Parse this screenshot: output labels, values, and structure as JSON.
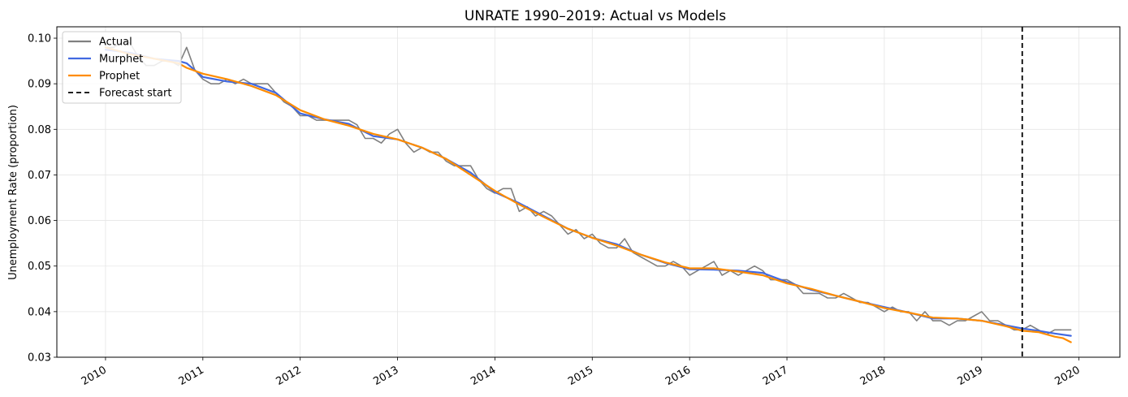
{
  "chart_data": {
    "type": "line",
    "title": "UNRATE 1990–2019: Actual vs Models",
    "xlabel": "",
    "ylabel": "Unemployment Rate (proportion)",
    "xlim": [
      2009.5,
      2020.42
    ],
    "ylim": [
      0.03,
      0.1025
    ],
    "x_ticks": [
      {
        "value": 2010,
        "label": "2010"
      },
      {
        "value": 2011,
        "label": "2011"
      },
      {
        "value": 2012,
        "label": "2012"
      },
      {
        "value": 2013,
        "label": "2013"
      },
      {
        "value": 2014,
        "label": "2014"
      },
      {
        "value": 2015,
        "label": "2015"
      },
      {
        "value": 2016,
        "label": "2016"
      },
      {
        "value": 2017,
        "label": "2017"
      },
      {
        "value": 2018,
        "label": "2018"
      },
      {
        "value": 2019,
        "label": "2019"
      },
      {
        "value": 2020,
        "label": "2020"
      }
    ],
    "y_ticks": [
      {
        "value": 0.03,
        "label": "0.03"
      },
      {
        "value": 0.04,
        "label": "0.04"
      },
      {
        "value": 0.05,
        "label": "0.05"
      },
      {
        "value": 0.06,
        "label": "0.06"
      },
      {
        "value": 0.07,
        "label": "0.07"
      },
      {
        "value": 0.08,
        "label": "0.08"
      },
      {
        "value": 0.09,
        "label": "0.09"
      },
      {
        "value": 0.1,
        "label": "0.10"
      }
    ],
    "grid": true,
    "legend_position": "top-left",
    "forecast_start": 2019.417,
    "series": [
      {
        "name": "Actual",
        "color": "#808080",
        "points": [
          [
            2010.0,
            0.098
          ],
          [
            2010.083,
            0.098
          ],
          [
            2010.167,
            0.099
          ],
          [
            2010.25,
            0.099
          ],
          [
            2010.333,
            0.096
          ],
          [
            2010.417,
            0.094
          ],
          [
            2010.5,
            0.094
          ],
          [
            2010.583,
            0.095
          ],
          [
            2010.667,
            0.095
          ],
          [
            2010.75,
            0.094
          ],
          [
            2010.833,
            0.098
          ],
          [
            2010.917,
            0.093
          ],
          [
            2011.0,
            0.091
          ],
          [
            2011.083,
            0.09
          ],
          [
            2011.167,
            0.09
          ],
          [
            2011.25,
            0.091
          ],
          [
            2011.333,
            0.09
          ],
          [
            2011.417,
            0.091
          ],
          [
            2011.5,
            0.09
          ],
          [
            2011.583,
            0.09
          ],
          [
            2011.667,
            0.09
          ],
          [
            2011.75,
            0.088
          ],
          [
            2011.833,
            0.086
          ],
          [
            2011.917,
            0.085
          ],
          [
            2012.0,
            0.083
          ],
          [
            2012.083,
            0.083
          ],
          [
            2012.167,
            0.082
          ],
          [
            2012.25,
            0.082
          ],
          [
            2012.333,
            0.082
          ],
          [
            2012.417,
            0.082
          ],
          [
            2012.5,
            0.082
          ],
          [
            2012.583,
            0.081
          ],
          [
            2012.667,
            0.078
          ],
          [
            2012.75,
            0.078
          ],
          [
            2012.833,
            0.077
          ],
          [
            2012.917,
            0.079
          ],
          [
            2013.0,
            0.08
          ],
          [
            2013.083,
            0.077
          ],
          [
            2013.167,
            0.075
          ],
          [
            2013.25,
            0.076
          ],
          [
            2013.333,
            0.075
          ],
          [
            2013.417,
            0.075
          ],
          [
            2013.5,
            0.073
          ],
          [
            2013.583,
            0.072
          ],
          [
            2013.667,
            0.072
          ],
          [
            2013.75,
            0.072
          ],
          [
            2013.833,
            0.069
          ],
          [
            2013.917,
            0.067
          ],
          [
            2014.0,
            0.066
          ],
          [
            2014.083,
            0.067
          ],
          [
            2014.167,
            0.067
          ],
          [
            2014.25,
            0.062
          ],
          [
            2014.333,
            0.063
          ],
          [
            2014.417,
            0.061
          ],
          [
            2014.5,
            0.062
          ],
          [
            2014.583,
            0.061
          ],
          [
            2014.667,
            0.059
          ],
          [
            2014.75,
            0.057
          ],
          [
            2014.833,
            0.058
          ],
          [
            2014.917,
            0.056
          ],
          [
            2015.0,
            0.057
          ],
          [
            2015.083,
            0.055
          ],
          [
            2015.167,
            0.054
          ],
          [
            2015.25,
            0.054
          ],
          [
            2015.333,
            0.056
          ],
          [
            2015.417,
            0.053
          ],
          [
            2015.5,
            0.052
          ],
          [
            2015.583,
            0.051
          ],
          [
            2015.667,
            0.05
          ],
          [
            2015.75,
            0.05
          ],
          [
            2015.833,
            0.051
          ],
          [
            2015.917,
            0.05
          ],
          [
            2016.0,
            0.048
          ],
          [
            2016.083,
            0.049
          ],
          [
            2016.167,
            0.05
          ],
          [
            2016.25,
            0.051
          ],
          [
            2016.333,
            0.048
          ],
          [
            2016.417,
            0.049
          ],
          [
            2016.5,
            0.048
          ],
          [
            2016.583,
            0.049
          ],
          [
            2016.667,
            0.05
          ],
          [
            2016.75,
            0.049
          ],
          [
            2016.833,
            0.047
          ],
          [
            2016.917,
            0.047
          ],
          [
            2017.0,
            0.047
          ],
          [
            2017.083,
            0.046
          ],
          [
            2017.167,
            0.044
          ],
          [
            2017.25,
            0.044
          ],
          [
            2017.333,
            0.044
          ],
          [
            2017.417,
            0.043
          ],
          [
            2017.5,
            0.043
          ],
          [
            2017.583,
            0.044
          ],
          [
            2017.667,
            0.043
          ],
          [
            2017.75,
            0.042
          ],
          [
            2017.833,
            0.042
          ],
          [
            2017.917,
            0.041
          ],
          [
            2018.0,
            0.04
          ],
          [
            2018.083,
            0.041
          ],
          [
            2018.167,
            0.04
          ],
          [
            2018.25,
            0.04
          ],
          [
            2018.333,
            0.038
          ],
          [
            2018.417,
            0.04
          ],
          [
            2018.5,
            0.038
          ],
          [
            2018.583,
            0.038
          ],
          [
            2018.667,
            0.037
          ],
          [
            2018.75,
            0.038
          ],
          [
            2018.833,
            0.038
          ],
          [
            2018.917,
            0.039
          ],
          [
            2019.0,
            0.04
          ],
          [
            2019.083,
            0.038
          ],
          [
            2019.167,
            0.038
          ],
          [
            2019.25,
            0.037
          ],
          [
            2019.333,
            0.036
          ],
          [
            2019.417,
            0.036
          ],
          [
            2019.5,
            0.037
          ],
          [
            2019.583,
            0.036
          ],
          [
            2019.667,
            0.035
          ],
          [
            2019.75,
            0.036
          ],
          [
            2019.833,
            0.036
          ],
          [
            2019.917,
            0.036
          ]
        ]
      },
      {
        "name": "Murphet",
        "color": "#4169e1",
        "points": [
          [
            2010.0,
            0.0975
          ],
          [
            2010.25,
            0.0968
          ],
          [
            2010.5,
            0.0955
          ],
          [
            2010.75,
            0.095
          ],
          [
            2010.833,
            0.0945
          ],
          [
            2011.0,
            0.0915
          ],
          [
            2011.25,
            0.0905
          ],
          [
            2011.5,
            0.09
          ],
          [
            2011.75,
            0.088
          ],
          [
            2012.0,
            0.0835
          ],
          [
            2012.25,
            0.0822
          ],
          [
            2012.5,
            0.0812
          ],
          [
            2012.75,
            0.0785
          ],
          [
            2013.0,
            0.0778
          ],
          [
            2013.25,
            0.076
          ],
          [
            2013.5,
            0.0735
          ],
          [
            2013.75,
            0.0705
          ],
          [
            2014.0,
            0.0662
          ],
          [
            2014.25,
            0.0638
          ],
          [
            2014.5,
            0.061
          ],
          [
            2014.75,
            0.0582
          ],
          [
            2015.0,
            0.0562
          ],
          [
            2015.25,
            0.0548
          ],
          [
            2015.5,
            0.0525
          ],
          [
            2015.75,
            0.0507
          ],
          [
            2016.0,
            0.0493
          ],
          [
            2016.25,
            0.0492
          ],
          [
            2016.5,
            0.049
          ],
          [
            2016.75,
            0.0485
          ],
          [
            2017.0,
            0.0465
          ],
          [
            2017.25,
            0.0448
          ],
          [
            2017.5,
            0.0435
          ],
          [
            2017.75,
            0.0422
          ],
          [
            2018.0,
            0.041
          ],
          [
            2018.25,
            0.0398
          ],
          [
            2018.5,
            0.0385
          ],
          [
            2018.75,
            0.0385
          ],
          [
            2019.0,
            0.038
          ],
          [
            2019.25,
            0.037
          ],
          [
            2019.417,
            0.0363
          ],
          [
            2019.583,
            0.0358
          ],
          [
            2019.75,
            0.0352
          ],
          [
            2019.917,
            0.0347
          ]
        ]
      },
      {
        "name": "Prophet",
        "color": "#ff8c00",
        "points": [
          [
            2010.0,
            0.098
          ],
          [
            2010.25,
            0.0965
          ],
          [
            2010.5,
            0.0955
          ],
          [
            2010.75,
            0.0945
          ],
          [
            2010.833,
            0.0935
          ],
          [
            2011.0,
            0.0922
          ],
          [
            2011.25,
            0.091
          ],
          [
            2011.5,
            0.0895
          ],
          [
            2011.75,
            0.0875
          ],
          [
            2012.0,
            0.0842
          ],
          [
            2012.25,
            0.0822
          ],
          [
            2012.5,
            0.0808
          ],
          [
            2012.75,
            0.079
          ],
          [
            2013.0,
            0.0778
          ],
          [
            2013.25,
            0.076
          ],
          [
            2013.5,
            0.0735
          ],
          [
            2013.75,
            0.07
          ],
          [
            2014.0,
            0.0665
          ],
          [
            2014.25,
            0.0635
          ],
          [
            2014.5,
            0.0608
          ],
          [
            2014.75,
            0.0582
          ],
          [
            2015.0,
            0.0562
          ],
          [
            2015.25,
            0.0545
          ],
          [
            2015.5,
            0.0525
          ],
          [
            2015.75,
            0.0508
          ],
          [
            2016.0,
            0.0495
          ],
          [
            2016.25,
            0.0495
          ],
          [
            2016.5,
            0.0488
          ],
          [
            2016.75,
            0.048
          ],
          [
            2017.0,
            0.0462
          ],
          [
            2017.25,
            0.045
          ],
          [
            2017.5,
            0.0435
          ],
          [
            2017.75,
            0.0422
          ],
          [
            2018.0,
            0.0408
          ],
          [
            2018.25,
            0.0398
          ],
          [
            2018.5,
            0.0387
          ],
          [
            2018.75,
            0.0385
          ],
          [
            2019.0,
            0.038
          ],
          [
            2019.25,
            0.0368
          ],
          [
            2019.417,
            0.0358
          ],
          [
            2019.583,
            0.0355
          ],
          [
            2019.75,
            0.0345
          ],
          [
            2019.833,
            0.0342
          ],
          [
            2019.917,
            0.0333
          ]
        ]
      }
    ]
  },
  "legend": {
    "items": [
      {
        "label": "Actual",
        "color": "#808080",
        "style": "solid"
      },
      {
        "label": "Murphet",
        "color": "#4169e1",
        "style": "solid"
      },
      {
        "label": "Prophet",
        "color": "#ff8c00",
        "style": "solid"
      },
      {
        "label": "Forecast start",
        "color": "#000000",
        "style": "dashed"
      }
    ]
  }
}
